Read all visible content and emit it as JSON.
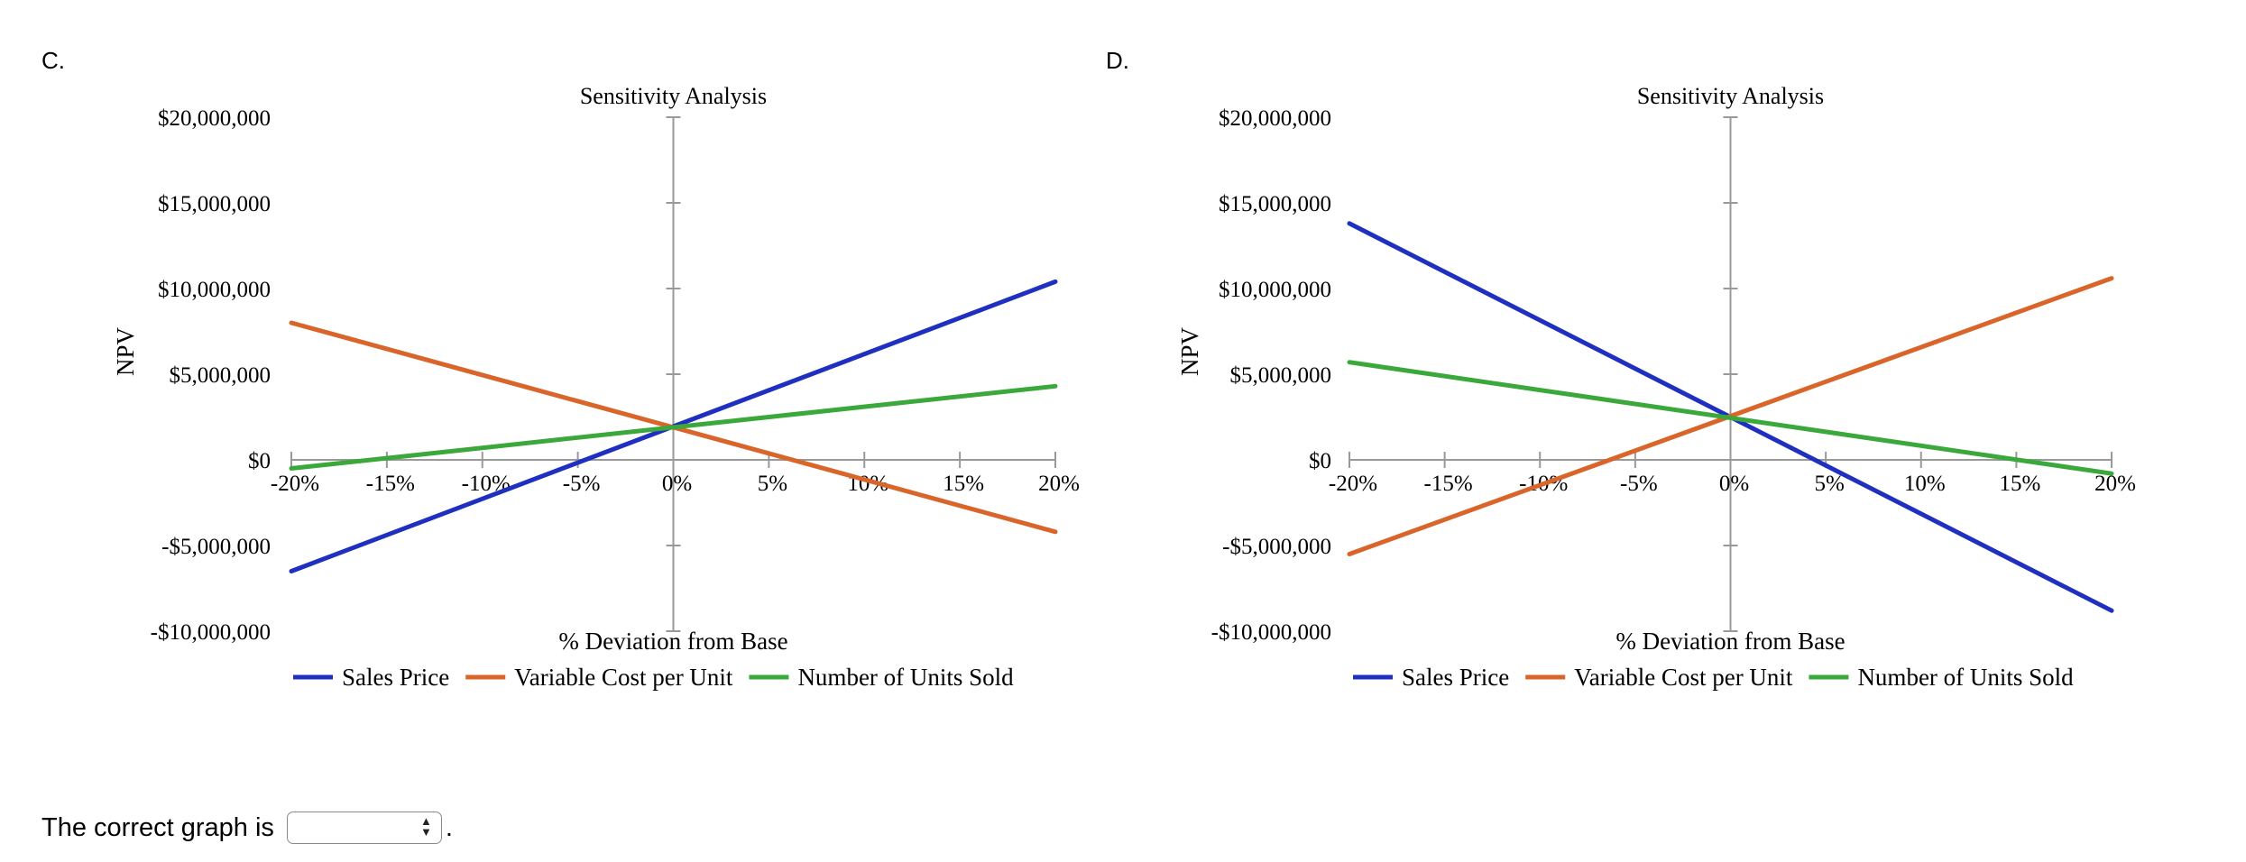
{
  "labels": {
    "c": "C.",
    "d": "D."
  },
  "question": {
    "text": "The correct graph is",
    "suffix": ".",
    "select_value": ""
  },
  "colors": {
    "sales": "#1f2fbf",
    "varcost": "#d9652b",
    "units": "#3aa83a",
    "axis": "#999999"
  },
  "chart_data": [
    {
      "type": "line",
      "title": "Sensitivity Analysis",
      "xlabel": "% Deviation from Base",
      "ylabel": "NPV",
      "xticks": [
        -20,
        -15,
        -10,
        -5,
        0,
        5,
        10,
        15,
        20
      ],
      "xtick_labels": [
        "-20%",
        "-15%",
        "-10%",
        "-5%",
        "0%",
        "5%",
        "10%",
        "15%",
        "20%"
      ],
      "yticks": [
        20000000,
        15000000,
        10000000,
        5000000,
        0,
        -5000000,
        -10000000
      ],
      "ytick_labels": [
        "$20,000,000",
        "$15,000,000",
        "$10,000,000",
        "$5,000,000",
        "$0",
        "-$5,000,000",
        "-$10,000,000"
      ],
      "xlim": [
        -20,
        20
      ],
      "ylim": [
        -10000000,
        20000000
      ],
      "legend": [
        "Sales Price",
        "Variable Cost per Unit",
        "Number of Units Sold"
      ],
      "series": [
        {
          "name": "Sales Price",
          "x": [
            -20,
            20
          ],
          "values": [
            -6500000,
            10400000
          ]
        },
        {
          "name": "Variable Cost per Unit",
          "x": [
            -20,
            20
          ],
          "values": [
            8000000,
            -4200000
          ]
        },
        {
          "name": "Number of Units Sold",
          "x": [
            -20,
            20
          ],
          "values": [
            -500000,
            4300000
          ]
        }
      ]
    },
    {
      "type": "line",
      "title": "Sensitivity Analysis",
      "xlabel": "% Deviation from Base",
      "ylabel": "NPV",
      "xticks": [
        -20,
        -15,
        -10,
        -5,
        0,
        5,
        10,
        15,
        20
      ],
      "xtick_labels": [
        "-20%",
        "-15%",
        "-10%",
        "-5%",
        "0%",
        "5%",
        "10%",
        "15%",
        "20%"
      ],
      "yticks": [
        20000000,
        15000000,
        10000000,
        5000000,
        0,
        -5000000,
        -10000000
      ],
      "ytick_labels": [
        "$20,000,000",
        "$15,000,000",
        "$10,000,000",
        "$5,000,000",
        "$0",
        "-$5,000,000",
        "-$10,000,000"
      ],
      "xlim": [
        -20,
        20
      ],
      "ylim": [
        -10000000,
        20000000
      ],
      "legend": [
        "Sales Price",
        "Variable Cost per Unit",
        "Number of Units Sold"
      ],
      "series": [
        {
          "name": "Sales Price",
          "x": [
            -20,
            20
          ],
          "values": [
            13800000,
            -8800000
          ]
        },
        {
          "name": "Variable Cost per Unit",
          "x": [
            -20,
            20
          ],
          "values": [
            -5500000,
            10600000
          ]
        },
        {
          "name": "Number of Units Sold",
          "x": [
            -20,
            20
          ],
          "values": [
            5700000,
            -800000
          ]
        }
      ]
    }
  ]
}
